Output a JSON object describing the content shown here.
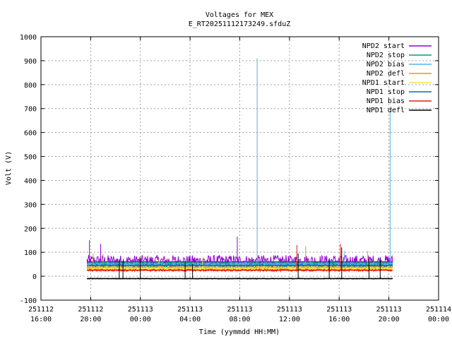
{
  "chart_data": {
    "type": "line",
    "title": "Voltages for MEX",
    "subtitle": "E_RT20251112173249.sfduZ",
    "xlabel": "Time (yymmdd HH:MM)",
    "ylabel": "Volt (V)",
    "ylim": [
      -100,
      1000
    ],
    "yticks": [
      -100,
      0,
      100,
      200,
      300,
      400,
      500,
      600,
      700,
      800,
      900,
      1000
    ],
    "xlim_hours": [
      0,
      32
    ],
    "xticks": [
      {
        "hour": 0,
        "date": "251112",
        "time": "16:00"
      },
      {
        "hour": 4,
        "date": "251112",
        "time": "20:00"
      },
      {
        "hour": 8,
        "date": "251113",
        "time": "00:00"
      },
      {
        "hour": 12,
        "date": "251113",
        "time": "04:00"
      },
      {
        "hour": 16,
        "date": "251113",
        "time": "08:00"
      },
      {
        "hour": 20,
        "date": "251113",
        "time": "12:00"
      },
      {
        "hour": 24,
        "date": "251113",
        "time": "16:00"
      },
      {
        "hour": 28,
        "date": "251113",
        "time": "20:00"
      },
      {
        "hour": 32,
        "date": "251114",
        "time": "00:00"
      }
    ],
    "grid": true,
    "legend_position": "top-right",
    "data_range_hours": [
      3.7,
      28.3
    ],
    "series": [
      {
        "name": "NPD2 start",
        "color": "#9400d3",
        "base": 60,
        "band": [
          40,
          88
        ],
        "spikes": [
          [
            3.9,
            150
          ],
          [
            4.8,
            135
          ],
          [
            15.8,
            165
          ]
        ]
      },
      {
        "name": "NPD2 stop",
        "color": "#009e73",
        "base": 55,
        "band": [
          48,
          62
        ],
        "spikes": []
      },
      {
        "name": "NPD2 bias",
        "color": "#56b4e9",
        "base": 50,
        "band": [
          40,
          58
        ],
        "spikes": [
          [
            17.4,
            910
          ],
          [
            28.1,
            690
          ],
          [
            24.4,
            105
          ]
        ]
      },
      {
        "name": "NPD2 defl",
        "color": "#e69f00",
        "base": 38,
        "band": [
          25,
          45
        ],
        "spikes": [
          [
            4.2,
            95
          ],
          [
            5.0,
            92
          ],
          [
            21.3,
            125
          ],
          [
            26.3,
            105
          ]
        ]
      },
      {
        "name": "NPD1 start",
        "color": "#f0e442",
        "base": 32,
        "band": [
          25,
          38
        ],
        "spikes": [
          [
            9.5,
            80
          ],
          [
            13.0,
            78
          ]
        ]
      },
      {
        "name": "NPD1 stop",
        "color": "#0072b2",
        "base": 45,
        "band": [
          40,
          50
        ],
        "spikes": [
          [
            23.5,
            70
          ]
        ]
      },
      {
        "name": "NPD1 bias",
        "color": "#e51e10",
        "base": 25,
        "band": [
          20,
          30
        ],
        "spikes": [
          [
            20.6,
            130
          ],
          [
            24.1,
            135
          ]
        ]
      },
      {
        "name": "NPD1 defl",
        "color": "#000000",
        "base": -10,
        "band": [
          -12,
          -8
        ],
        "spikes": [
          [
            6.3,
            70
          ],
          [
            6.6,
            65
          ],
          [
            8.0,
            75
          ],
          [
            11.6,
            60
          ],
          [
            12.2,
            50
          ],
          [
            20.7,
            95
          ],
          [
            23.2,
            75
          ],
          [
            24.2,
            120
          ],
          [
            26.4,
            70
          ],
          [
            27.3,
            75
          ]
        ]
      }
    ]
  }
}
